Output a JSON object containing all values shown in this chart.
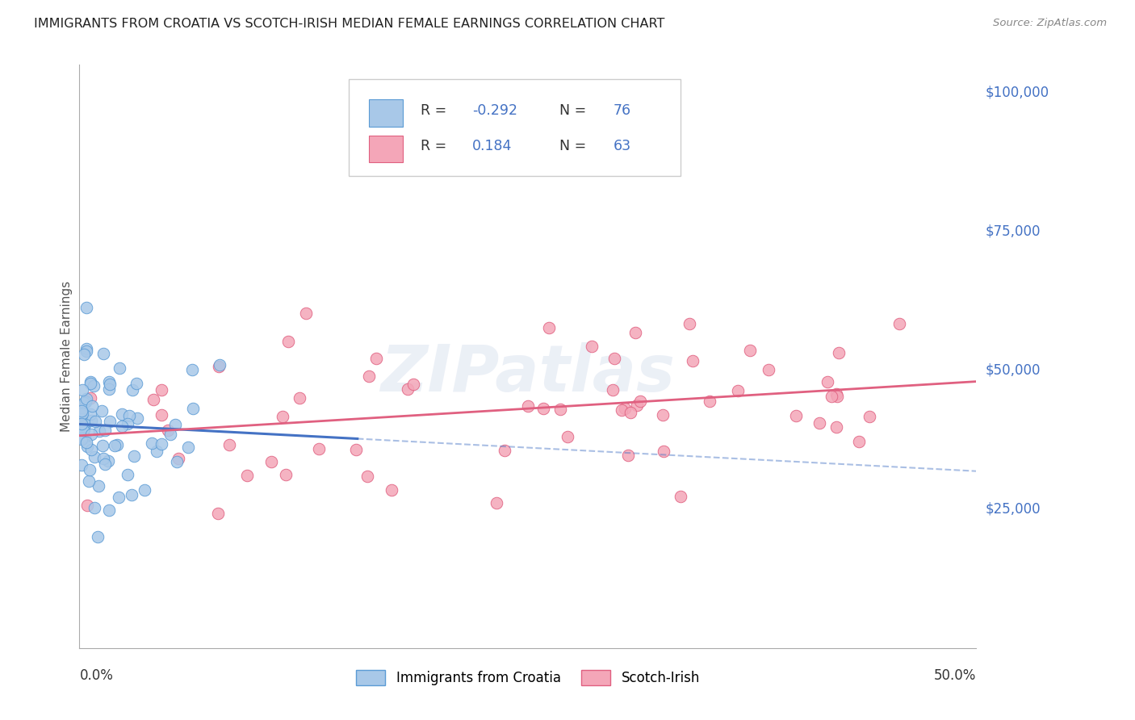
{
  "title": "IMMIGRANTS FROM CROATIA VS SCOTCH-IRISH MEDIAN FEMALE EARNINGS CORRELATION CHART",
  "source": "Source: ZipAtlas.com",
  "ylabel": "Median Female Earnings",
  "xlim": [
    0.0,
    0.5
  ],
  "ylim": [
    0,
    105000
  ],
  "ytick_vals": [
    25000,
    50000,
    75000,
    100000
  ],
  "ytick_labels": [
    "$25,000",
    "$50,000",
    "$75,000",
    "$100,000"
  ],
  "series": [
    {
      "name": "Immigrants from Croatia",
      "R": -0.292,
      "N": 76,
      "color": "#a8c8e8",
      "edge_color": "#5b9bd5",
      "trend_color": "#4472c4",
      "trend_solid_end": 0.155,
      "trend_x_start": 0.0,
      "trend_x_end": 0.5
    },
    {
      "name": "Scotch-Irish",
      "R": 0.184,
      "N": 63,
      "color": "#f4a6b8",
      "edge_color": "#e06080",
      "trend_color": "#e06080",
      "trend_x_start": 0.0,
      "trend_x_end": 0.5
    }
  ],
  "legend_R_color": "#4472c4",
  "legend_N_color": "#4472c4",
  "legend_text_color": "#333333",
  "background_color": "#ffffff",
  "grid_color": "#c8c8c8",
  "title_color": "#222222",
  "axis_label_color": "#4472c4",
  "watermark_text": "ZIPatlas",
  "watermark_color": "#c8d4e8",
  "watermark_alpha": 0.35,
  "source_color": "#888888"
}
